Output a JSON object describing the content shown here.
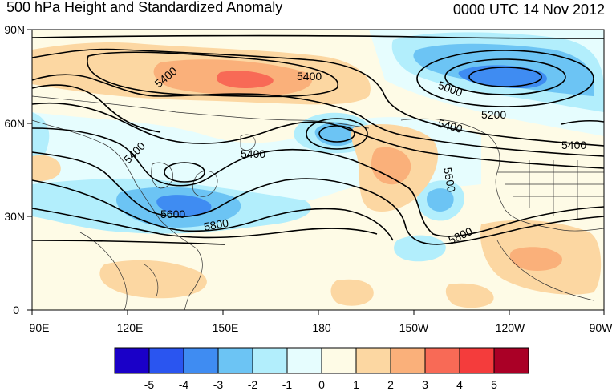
{
  "title": {
    "left": "500 hPa Height and Standardized Anomaly",
    "right": "0000 UTC 14 Nov 2012"
  },
  "map": {
    "lat_labels": [
      "90N",
      "60N",
      "30N",
      "0"
    ],
    "lon_labels": [
      "90E",
      "120E",
      "150E",
      "180",
      "150W",
      "120W",
      "90W"
    ],
    "contour_labels": [
      "5400",
      "5400",
      "5000",
      "5200",
      "5400",
      "5400",
      "5400",
      "5400",
      "5600",
      "5600",
      "5800",
      "5800"
    ],
    "field_name": "500 hPa Height and Standardized Anomaly",
    "anomaly_colors": {
      "neg5": "#1a00c8",
      "neg4": "#2a55f0",
      "neg3": "#3f8cf2",
      "neg2": "#6cc4f4",
      "neg1": "#b2eefc",
      "zero_lo": "#e6fdfe",
      "zero_hi": "#fefbe6",
      "pos1": "#fcd7a2",
      "pos2": "#fab07a",
      "pos3": "#f86a56",
      "pos4": "#f43c3c",
      "pos5": "#aa0026"
    }
  },
  "colorbar": {
    "labels": [
      "-5",
      "-4",
      "-3",
      "-2",
      "-1",
      "0",
      "1",
      "2",
      "3",
      "4",
      "5"
    ],
    "colors": [
      "#1a00c8",
      "#2a55f0",
      "#3f8cf2",
      "#6cc4f4",
      "#b2eefc",
      "#e6fdfe",
      "#fefbe6",
      "#fcd7a2",
      "#fab07a",
      "#f86a56",
      "#f43c3c",
      "#aa0026"
    ]
  }
}
